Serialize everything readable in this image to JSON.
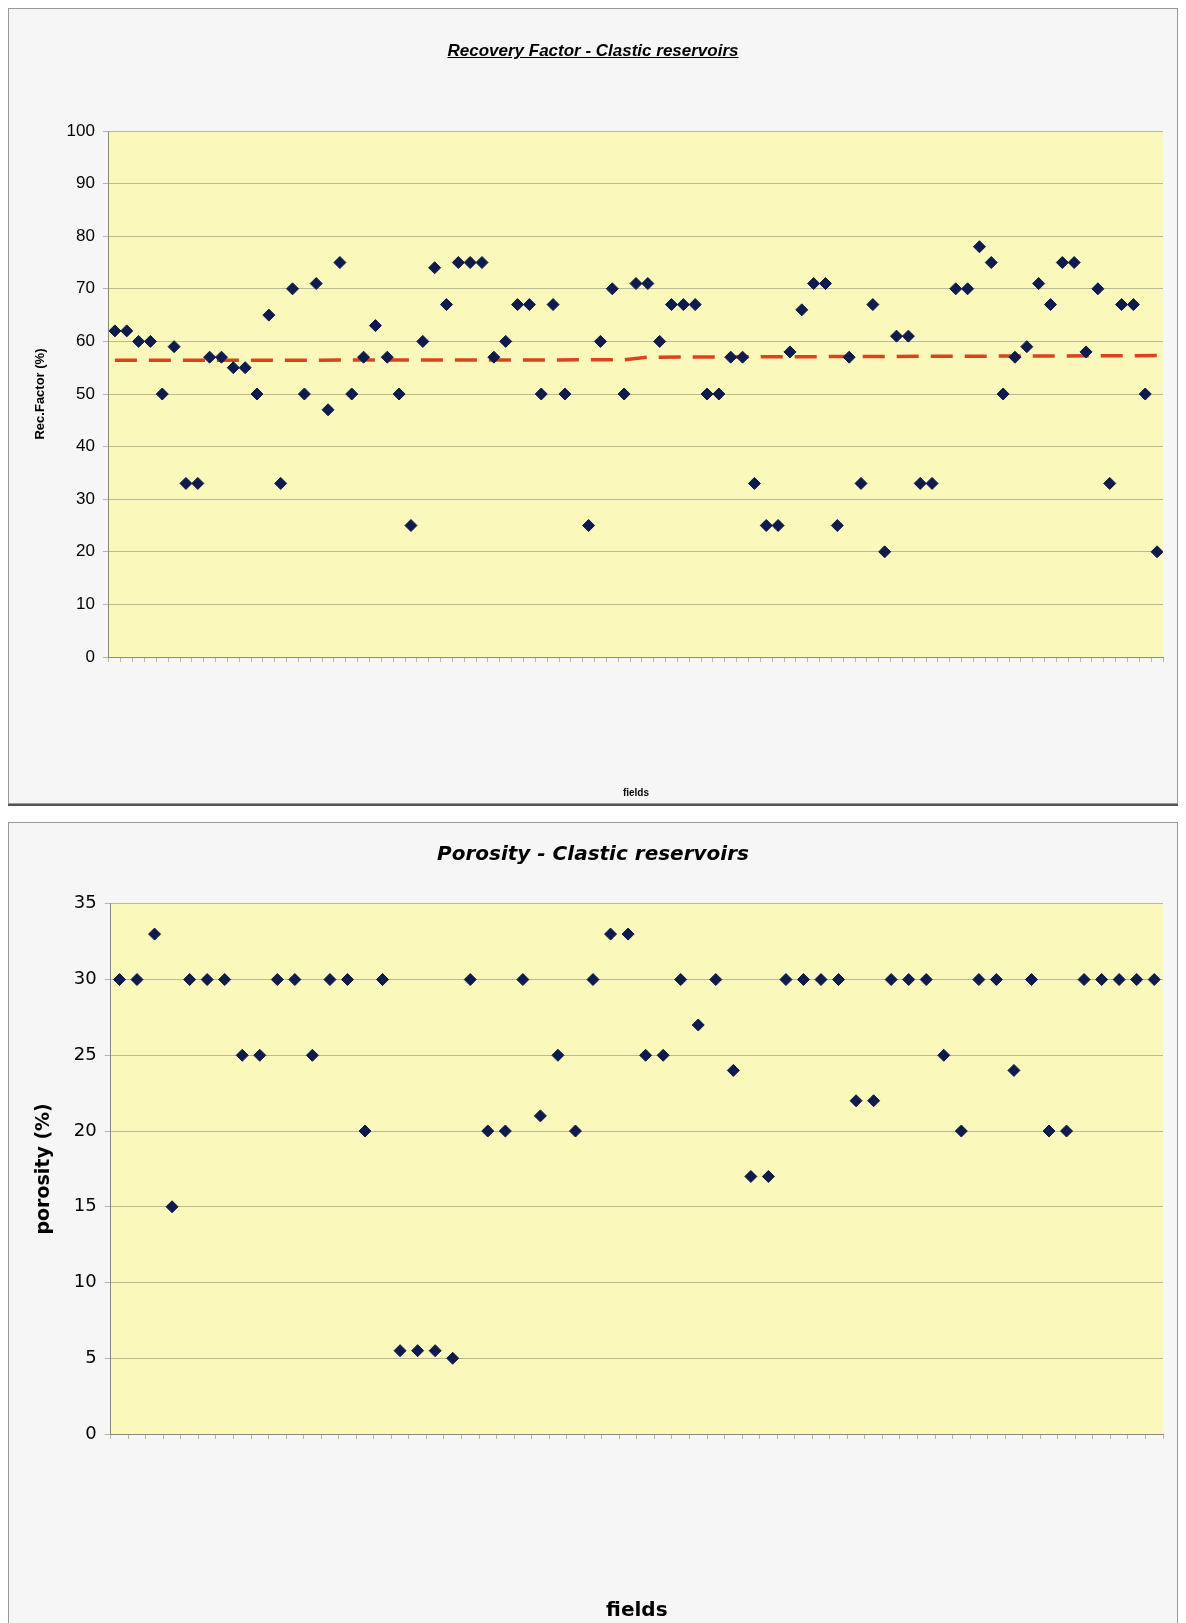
{
  "chart_data": [
    {
      "type": "scatter",
      "title": "Recovery Factor - Clastic reservoirs",
      "xlabel": "fields",
      "ylabel": "Rec.Factor (%)",
      "categories": [
        null,
        null,
        null,
        null,
        null,
        null,
        null,
        null,
        null,
        null,
        null,
        null,
        null,
        null,
        null,
        null,
        null,
        null,
        null,
        null,
        null,
        null,
        null,
        null,
        null,
        null,
        null,
        null,
        null,
        null,
        null,
        null,
        null,
        null,
        null,
        null,
        null,
        null,
        null,
        null,
        null,
        null,
        null,
        null,
        null,
        null,
        null,
        null,
        null,
        null,
        null,
        null,
        null,
        null,
        null,
        null,
        null,
        null,
        null,
        null,
        null,
        null,
        null,
        null,
        null,
        null,
        null,
        null,
        null,
        null,
        null,
        null,
        null,
        null,
        null,
        null,
        null,
        null,
        null,
        null,
        null,
        null,
        null,
        null,
        null,
        null,
        null,
        null,
        null
      ],
      "series": [
        {
          "type": "scatter",
          "color": "#0f1a4d",
          "values": [
            62,
            62,
            60,
            60,
            50,
            59,
            33,
            33,
            57,
            57,
            55,
            55,
            50,
            65,
            33,
            70,
            50,
            71,
            47,
            75,
            50,
            57,
            63,
            57,
            50,
            25,
            60,
            74,
            67,
            75,
            75,
            75,
            57,
            60,
            67,
            67,
            50,
            67,
            50,
            null,
            25,
            60,
            70,
            50,
            71,
            71,
            60,
            67,
            67,
            67,
            50,
            50,
            57,
            57,
            33,
            25,
            25,
            58,
            66,
            71,
            71,
            25,
            57,
            33,
            67,
            20,
            61,
            61,
            33,
            33,
            null,
            70,
            70,
            78,
            75,
            50,
            57,
            59,
            71,
            67,
            75,
            75,
            58,
            70,
            33,
            67,
            67,
            50,
            20
          ]
        },
        {
          "type": "line",
          "color": "#d9441c",
          "marker": "none",
          "line_style": "dashed",
          "values": [
            56.4,
            null,
            null,
            null,
            null,
            null,
            null,
            null,
            null,
            null,
            null,
            null,
            null,
            null,
            null,
            null,
            null,
            null,
            null,
            null,
            null,
            null,
            null,
            null,
            null,
            null,
            null,
            null,
            null,
            null,
            null,
            null,
            null,
            null,
            null,
            null,
            null,
            null,
            null,
            null,
            null,
            null,
            null,
            56.5,
            null,
            57,
            null,
            null,
            null,
            null,
            null,
            null,
            null,
            null,
            null,
            null,
            null,
            null,
            null,
            null,
            null,
            null,
            null,
            null,
            null,
            null,
            null,
            null,
            null,
            null,
            null,
            null,
            null,
            null,
            null,
            null,
            null,
            null,
            null,
            null,
            null,
            null,
            null,
            null,
            null,
            null,
            null,
            null,
            57.3
          ]
        }
      ],
      "marker": "diamond",
      "ylim": [
        0,
        100
      ],
      "yticks": [
        0,
        10,
        20,
        30,
        40,
        50,
        60,
        70,
        80,
        90,
        100
      ],
      "grid": "y",
      "legend": false,
      "tick_labels": "y"
    },
    {
      "type": "scatter",
      "title": "Porosity - Clastic reservoirs",
      "xlabel": "fields",
      "ylabel": "porosity (%)",
      "categories": [
        null,
        null,
        null,
        null,
        null,
        null,
        null,
        null,
        null,
        null,
        null,
        null,
        null,
        null,
        null,
        null,
        null,
        null,
        null,
        null,
        null,
        null,
        null,
        null,
        null,
        null,
        null,
        null,
        null,
        null,
        null,
        null,
        null,
        null,
        null,
        null,
        null,
        null,
        null,
        null,
        null,
        null,
        null,
        null,
        null,
        null,
        null,
        null,
        null,
        null,
        null,
        null,
        null,
        null,
        null,
        null,
        null,
        null,
        null,
        null
      ],
      "series": [
        {
          "type": "scatter",
          "color": "#0f1a4d",
          "values": [
            30,
            30,
            33,
            15,
            30,
            30,
            30,
            25,
            25,
            30,
            30,
            25,
            30,
            30,
            20,
            30,
            5.5,
            5.5,
            5.5,
            5,
            30,
            20,
            20,
            30,
            21,
            25,
            20,
            30,
            33,
            33,
            25,
            25,
            30,
            27,
            30,
            24,
            17,
            17,
            30,
            30,
            30,
            30,
            22,
            22,
            30,
            30,
            30,
            25,
            20,
            30,
            30,
            24,
            30,
            20,
            20,
            30,
            30,
            30,
            30,
            30
          ]
        }
      ],
      "marker": "diamond",
      "ylim": [
        0,
        35
      ],
      "yticks": [
        0,
        5,
        10,
        15,
        20,
        25,
        30,
        35
      ],
      "grid": "y",
      "legend": false,
      "tick_labels": "y"
    }
  ]
}
